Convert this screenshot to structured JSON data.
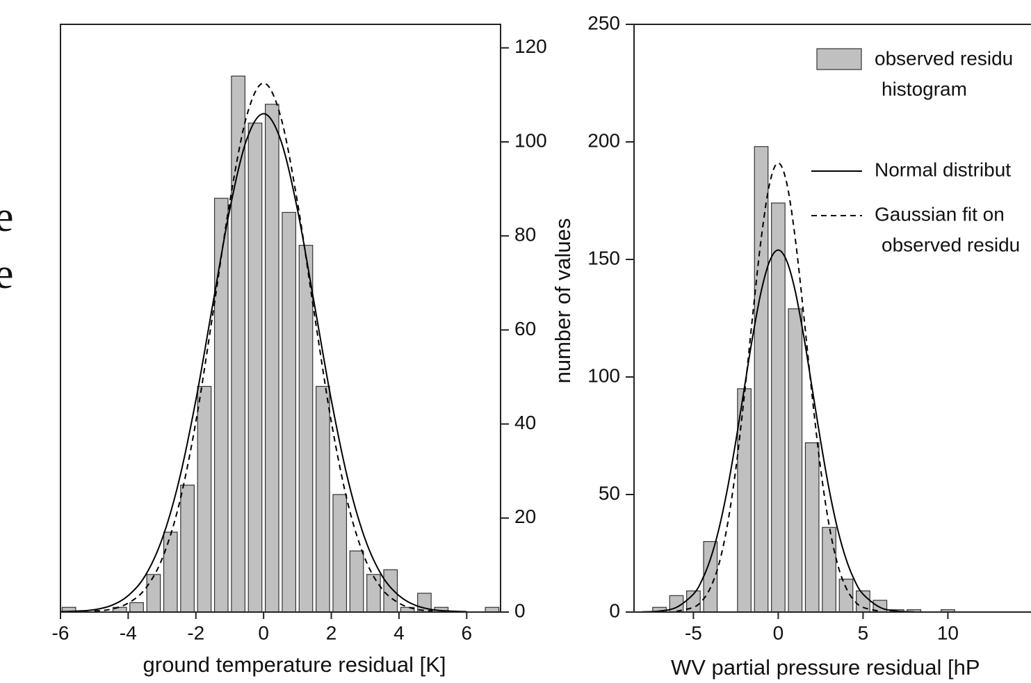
{
  "fragments": [
    "e",
    "e"
  ],
  "chart_data": [
    {
      "type": "histogram",
      "xlabel": "ground temperature residual [K]",
      "ylabel": "number of values",
      "yaxis_side": "right",
      "xlim": [
        -6,
        7
      ],
      "ylim": [
        0,
        125
      ],
      "xticks": [
        -6,
        -4,
        -2,
        0,
        2,
        4,
        6
      ],
      "yticks": [
        0,
        20,
        40,
        60,
        80,
        100,
        120
      ],
      "color": "#c0c0c0",
      "bins": [
        -6,
        -5.5,
        -5,
        -4.5,
        -4,
        -3.5,
        -3,
        -2.5,
        -2,
        -1.5,
        -1,
        -0.5,
        0,
        0.5,
        1,
        1.5,
        2,
        2.5,
        3,
        3.5,
        4,
        4.5,
        5,
        5.5,
        6,
        6.5,
        7
      ],
      "values": [
        1,
        0,
        0,
        1,
        2,
        8,
        17,
        27,
        48,
        88,
        114,
        104,
        108,
        85,
        78,
        48,
        25,
        13,
        8,
        9,
        1,
        4,
        1,
        0,
        0,
        1
      ],
      "series": [
        {
          "style": "solid",
          "color": "#000000",
          "x": [
            -6,
            -5.5,
            -5,
            -4.5,
            -4,
            -3.5,
            -3,
            -2.5,
            -2,
            -1.5,
            -1,
            -0.5,
            0,
            0.5,
            1,
            1.5,
            2,
            2.5,
            3,
            3.5,
            4,
            4.5,
            5,
            5.5,
            6
          ],
          "values": [
            0.1,
            0.2,
            0.5,
            1.4,
            3.5,
            7.7,
            15.5,
            27.9,
            45.1,
            65.5,
            85.6,
            100.5,
            106,
            100.5,
            85.6,
            65.5,
            45.1,
            27.9,
            15.5,
            7.7,
            3.5,
            1.4,
            0.5,
            0.2,
            0.1
          ]
        },
        {
          "style": "dashed",
          "color": "#000000",
          "x": [
            -5,
            -4.5,
            -4,
            -3.5,
            -3,
            -2.5,
            -2,
            -1.5,
            -1,
            -0.5,
            0,
            0.5,
            1,
            1.5,
            2,
            2.5,
            3,
            3.5,
            4,
            4.5,
            5
          ],
          "values": [
            0.2,
            0.6,
            1.9,
            4.9,
            11.3,
            22.8,
            40.5,
            63.4,
            87.2,
            105.5,
            112.5,
            105.5,
            87.2,
            63.4,
            40.5,
            22.8,
            11.3,
            4.9,
            1.9,
            0.6,
            0.2
          ]
        }
      ]
    },
    {
      "type": "histogram",
      "xlabel": "WV partial pressure residual [hP",
      "yaxis_side": "left",
      "xlim": [
        -8.5,
        14.9
      ],
      "ylim": [
        0,
        250
      ],
      "xticks": [
        -5,
        0,
        5,
        10
      ],
      "yticks": [
        0,
        50,
        100,
        150,
        200,
        250
      ],
      "color": "#c0c0c0",
      "legend_name": [
        "observed residu",
        "histogram"
      ],
      "bins": [
        -7.5,
        -6.5,
        -5.5,
        -4.5,
        -3.5,
        -2.5,
        -1.5,
        -0.5,
        0.5,
        1.5,
        2.5,
        3.5,
        4.5,
        5.5,
        6.5,
        7.5,
        8.5,
        9.5,
        10.5
      ],
      "values": [
        2,
        7,
        9,
        30,
        0,
        95,
        198,
        174,
        129,
        72,
        36,
        14,
        9,
        5,
        1,
        1,
        0,
        1
      ],
      "series": [
        {
          "name": [
            "Normal distribut"
          ],
          "style": "solid",
          "color": "#000000",
          "x": [
            -8,
            -7,
            -6,
            -5,
            -4.5,
            -4,
            -3.5,
            -3,
            -2.5,
            -2,
            -1.5,
            -1,
            -0.5,
            0,
            0.5,
            1,
            1.5,
            2,
            2.5,
            3,
            3.5,
            4,
            4.5,
            5,
            6,
            7,
            8
          ],
          "values": [
            0.1,
            0.4,
            2.0,
            7.6,
            13.5,
            22.5,
            35.3,
            52.2,
            72.7,
            95.2,
            117.5,
            136.6,
            149.4,
            154,
            149.4,
            136.6,
            117.5,
            95.2,
            72.7,
            52.2,
            35.3,
            22.5,
            13.5,
            7.6,
            2.0,
            0.4,
            0.1
          ]
        },
        {
          "name": [
            "Gaussian fit on",
            "observed residu"
          ],
          "style": "dashed",
          "color": "#000000",
          "x": [
            -6,
            -5,
            -4.5,
            -4,
            -3.5,
            -3,
            -2.5,
            -2,
            -1.5,
            -1,
            -0.5,
            0,
            0.5,
            1,
            1.5,
            2,
            2.5,
            3,
            3.5,
            4,
            4.5,
            5,
            6
          ],
          "values": [
            0.3,
            2.0,
            4.7,
            10.3,
            20.3,
            36.9,
            60.9,
            92.0,
            126.6,
            159.1,
            182.5,
            191,
            182.5,
            159.1,
            126.6,
            92.0,
            60.9,
            36.9,
            20.3,
            10.3,
            4.7,
            2.0,
            0.3
          ]
        }
      ]
    }
  ]
}
